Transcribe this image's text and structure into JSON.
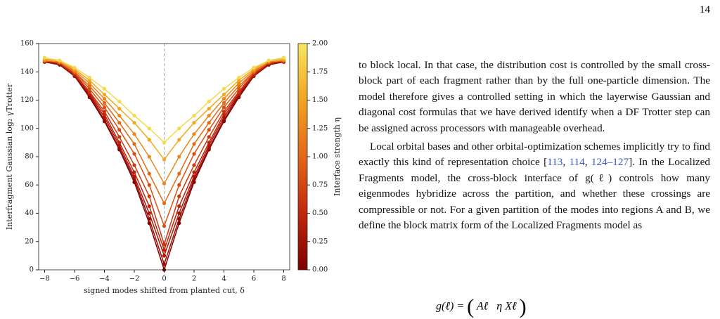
{
  "page_number": "14",
  "chart_data": {
    "type": "line",
    "x": [
      -8,
      -7,
      -6,
      -5,
      -4,
      -3,
      -2,
      -1,
      0,
      1,
      2,
      3,
      4,
      5,
      6,
      7,
      8
    ],
    "xlim": [
      -8.4,
      8.4
    ],
    "xticks": [
      {
        "value": -8,
        "label": "−8"
      },
      {
        "value": -6,
        "label": "−6"
      },
      {
        "value": -4,
        "label": "−4"
      },
      {
        "value": -2,
        "label": "−2"
      },
      0,
      2,
      4,
      6,
      8
    ],
    "ylim": [
      0,
      160
    ],
    "yticks": [
      0,
      20,
      40,
      60,
      80,
      100,
      120,
      140,
      160
    ],
    "xlabel": "signed modes shifted from planted cut, δ",
    "ylabel": "Interfragment Gaussian log₂ γTrotter",
    "cut_line": 0,
    "colorbar": {
      "label": "Interface strength η",
      "lim": [
        0,
        2
      ],
      "colors": [
        "#7f0000",
        "#c0280c",
        "#e4661a",
        "#f2a322",
        "#f7e660"
      ],
      "ticks": [
        {
          "value": 0,
          "label": "0.00"
        },
        {
          "value": 0.25,
          "label": "0.25"
        },
        {
          "value": 0.5,
          "label": "0.50"
        },
        {
          "value": 0.75,
          "label": "0.75"
        },
        {
          "value": 1,
          "label": "1.00"
        },
        {
          "value": 1.25,
          "label": "1.25"
        },
        {
          "value": 1.5,
          "label": "1.50"
        },
        {
          "value": 1.75,
          "label": "1.75"
        },
        {
          "value": 2,
          "label": "2.00"
        }
      ]
    },
    "series": [
      {
        "color": "#7f0000",
        "values": [
          147,
          145,
          137,
          122,
          105,
          85,
          62,
          33,
          0,
          33,
          62,
          85,
          105,
          122,
          137,
          145,
          147
        ]
      },
      {
        "color": "#990a05",
        "values": [
          147,
          145,
          137,
          123,
          106,
          86,
          64,
          36,
          4,
          36,
          64,
          86,
          106,
          123,
          137,
          145,
          147
        ]
      },
      {
        "color": "#ab1508",
        "values": [
          147,
          146,
          138,
          124,
          108,
          88,
          66,
          40,
          10,
          40,
          66,
          88,
          108,
          124,
          138,
          146,
          147
        ]
      },
      {
        "color": "#bc230b",
        "values": [
          148,
          146,
          138,
          125,
          110,
          90,
          69,
          45,
          14,
          45,
          69,
          90,
          110,
          125,
          138,
          146,
          148
        ]
      },
      {
        "color": "#cb360d",
        "values": [
          148,
          146,
          139,
          126,
          112,
          94,
          74,
          52,
          18,
          52,
          74,
          94,
          112,
          126,
          139,
          146,
          148
        ]
      },
      {
        "color": "#d8500f",
        "values": [
          148,
          147,
          140,
          128,
          115,
          99,
          82,
          60,
          31,
          60,
          82,
          99,
          115,
          128,
          140,
          147,
          148
        ]
      },
      {
        "color": "#e36a14",
        "values": [
          148,
          147,
          140,
          130,
          118,
          104,
          89,
          68,
          47,
          68,
          89,
          104,
          118,
          130,
          140,
          147,
          148
        ]
      },
      {
        "color": "#eb8718",
        "values": [
          148,
          147,
          141,
          132,
          121,
          109,
          96,
          80,
          61,
          80,
          96,
          109,
          121,
          132,
          141,
          147,
          148
        ]
      },
      {
        "color": "#f1a81f",
        "values": [
          149,
          148,
          142,
          134,
          124,
          114,
          104,
          92,
          78,
          92,
          104,
          114,
          124,
          134,
          142,
          148,
          149
        ]
      },
      {
        "color": "#f5d94a",
        "values": [
          150,
          148,
          143,
          136,
          128,
          119,
          109,
          100,
          90,
          100,
          109,
          119,
          128,
          136,
          143,
          148,
          150
        ]
      }
    ]
  },
  "text": {
    "paragraphs": [
      [
        "to block local. In that case, the distribution cost is controlled by the small cross-block part of each fragment rather than by the full one-particle dimension. The model therefore gives a controlled setting in which the layerwise Gaussian and diagonal cost formulas that we have derived identify when a DF Trotter step can be assigned across processors with manageable overhead."
      ],
      [
        "Local orbital bases and other orbital-optimization schemes implicitly try to find exactly this kind of representation choice [",
        "113",
        ", ",
        "114",
        ", ",
        "124–127",
        "]. In the Localized Fragments model, the cross-block interface of g(ℓ) controls how many eigenmodes hybridize across the partition, and whether these crossings are compressible or not. For a given partition of the modes into regions A and B, we define the block matrix form of the Localized Fragments model as"
      ]
    ],
    "equation": {
      "lhs": "g(ℓ) =",
      "a": "Aℓ",
      "b": "η Xℓ"
    }
  }
}
